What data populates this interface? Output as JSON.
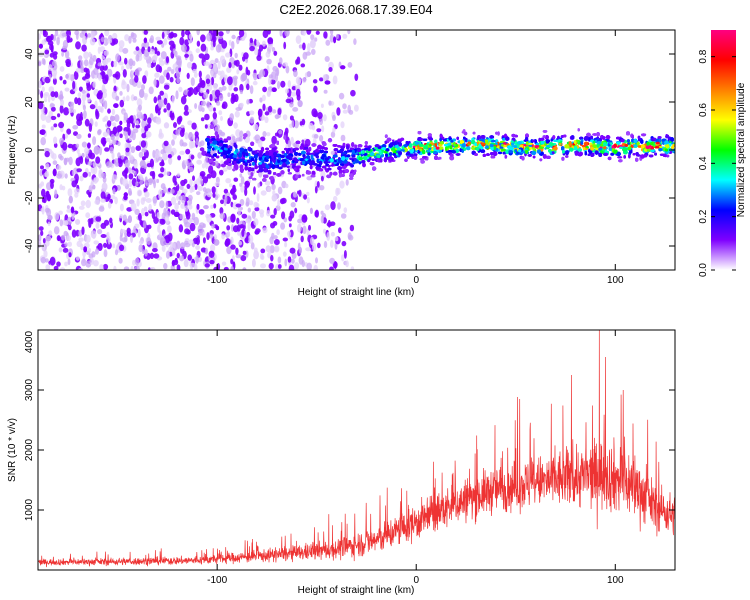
{
  "title": "C2E2.2026.068.17.39.E04",
  "chart_data": [
    {
      "type": "heatmap",
      "xlabel": "Height of straight line (km)",
      "ylabel": "Frequency (Hz)",
      "xlim": [
        -190,
        130
      ],
      "ylim": [
        -50,
        50
      ],
      "xticks": [
        -100,
        0,
        100
      ],
      "yticks": [
        -40,
        -20,
        0,
        20,
        40
      ],
      "noise_region": {
        "x_range": [
          -190,
          -30
        ],
        "note": "scattered purple noise"
      },
      "signal_track": [
        {
          "x": -105,
          "y": 2
        },
        {
          "x": -90,
          "y": -2
        },
        {
          "x": -75,
          "y": -5
        },
        {
          "x": -60,
          "y": -3
        },
        {
          "x": -45,
          "y": -4
        },
        {
          "x": -30,
          "y": -3
        },
        {
          "x": -20,
          "y": -1
        },
        {
          "x": 0,
          "y": 1
        },
        {
          "x": 20,
          "y": 2
        },
        {
          "x": 40,
          "y": 2
        },
        {
          "x": 60,
          "y": 1
        },
        {
          "x": 80,
          "y": 2
        },
        {
          "x": 100,
          "y": 1
        },
        {
          "x": 130,
          "y": 2
        }
      ],
      "colorbar": {
        "label": "Normalized spectral amplitude",
        "range": [
          0,
          0.9
        ],
        "ticks": [
          "0.0",
          "0.2",
          "0.4",
          "0.6",
          "0.8"
        ],
        "stops": [
          "#ffffff",
          "#7f00ff",
          "#0000ff",
          "#00ffff",
          "#00ff00",
          "#ffff00",
          "#ff8000",
          "#ff0000",
          "#ff0080"
        ]
      }
    },
    {
      "type": "line",
      "xlabel": "Height of straight line (km)",
      "ylabel": "SNR (10 * v/v)",
      "xlim": [
        -190,
        130
      ],
      "ylim": [
        0,
        4000
      ],
      "xticks": [
        -100,
        0,
        100
      ],
      "yticks": [
        1000,
        2000,
        3000,
        4000
      ],
      "color": "#ee3333",
      "envelope": [
        {
          "x": -190,
          "mean": 130,
          "spread": 60
        },
        {
          "x": -150,
          "mean": 140,
          "spread": 70
        },
        {
          "x": -110,
          "mean": 160,
          "spread": 80
        },
        {
          "x": -80,
          "mean": 230,
          "spread": 120
        },
        {
          "x": -60,
          "mean": 280,
          "spread": 150
        },
        {
          "x": -40,
          "mean": 350,
          "spread": 200
        },
        {
          "x": -20,
          "mean": 500,
          "spread": 280
        },
        {
          "x": 0,
          "mean": 800,
          "spread": 350
        },
        {
          "x": 20,
          "mean": 1100,
          "spread": 400
        },
        {
          "x": 40,
          "mean": 1350,
          "spread": 450
        },
        {
          "x": 60,
          "mean": 1450,
          "spread": 500
        },
        {
          "x": 80,
          "mean": 1550,
          "spread": 600
        },
        {
          "x": 95,
          "mean": 1600,
          "spread": 700
        },
        {
          "x": 110,
          "mean": 1400,
          "spread": 650
        },
        {
          "x": 120,
          "mean": 1050,
          "spread": 450
        },
        {
          "x": 130,
          "mean": 900,
          "spread": 400
        }
      ],
      "peaks": [
        {
          "x": 52,
          "y": 2850
        },
        {
          "x": 78,
          "y": 3250
        },
        {
          "x": 92,
          "y": 4000
        },
        {
          "x": 95,
          "y": 3550
        },
        {
          "x": 104,
          "y": 3000
        }
      ]
    }
  ]
}
